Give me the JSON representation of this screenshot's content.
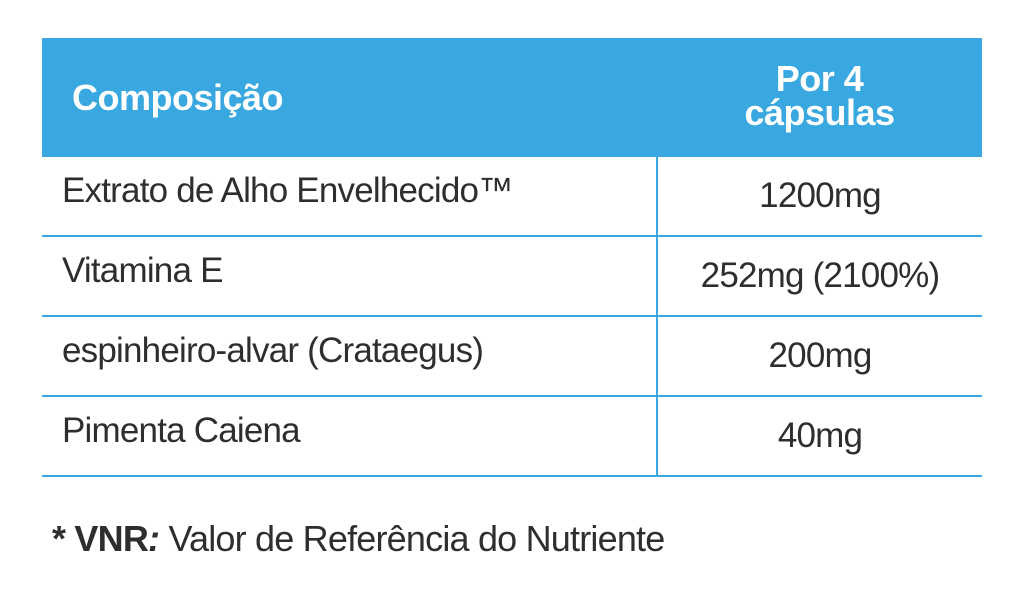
{
  "table": {
    "header": [
      "Composição",
      "Por 4 cápsulas"
    ],
    "rows": [
      [
        "Extrato de Alho Envelhecido™",
        "1200mg"
      ],
      [
        "Vitamina E",
        "252mg (2100%)"
      ],
      [
        "espinheiro-alvar (Crataegus)",
        "200mg"
      ],
      [
        "Pimenta Caiena",
        "40mg"
      ]
    ]
  },
  "footnote": {
    "marker": "*",
    "term": "VNR",
    "colon": ":",
    "text": "Valor de Referência do Nutriente"
  }
}
